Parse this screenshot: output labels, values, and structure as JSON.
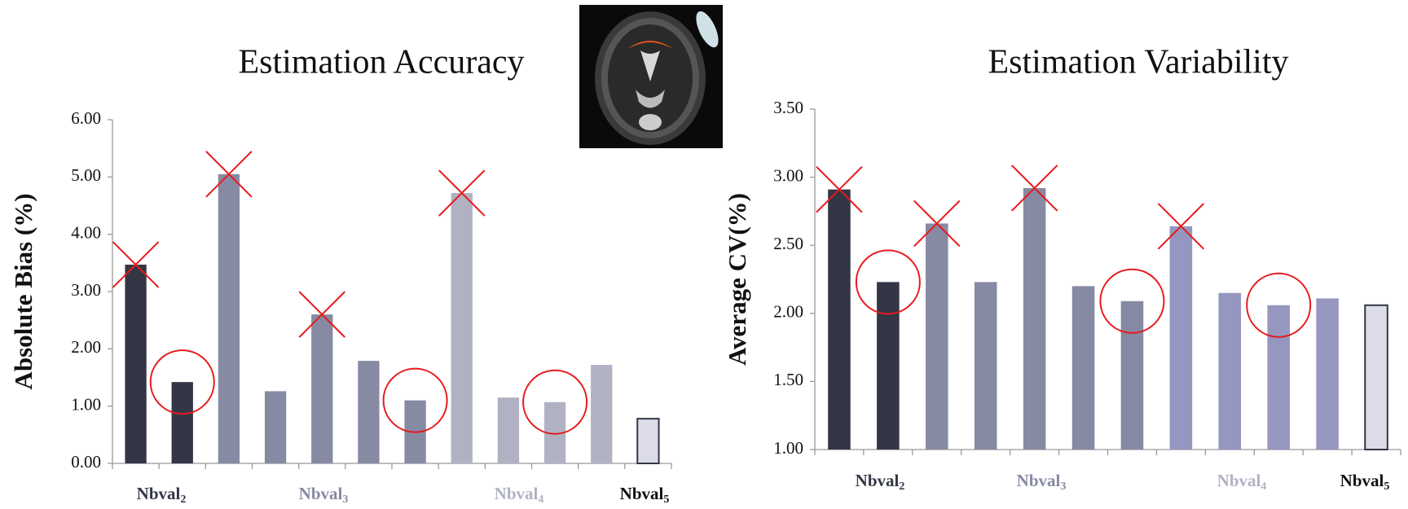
{
  "chart_data": [
    {
      "type": "bar",
      "title": "Estimation Accuracy",
      "y_label": "Absolute Bias (%)",
      "values": [
        3.47,
        1.42,
        5.05,
        1.26,
        2.6,
        1.79,
        1.1,
        4.72,
        1.15,
        1.07,
        1.72,
        0.78
      ],
      "colors": [
        "#333645",
        "#333645",
        "#878aa3",
        "#878aa3",
        "#878aa3",
        "#878aa3",
        "#878aa3",
        "#b0b2c4",
        "#b0b2c4",
        "#b0b2c4",
        "#b0b2c4",
        "#dcdce8"
      ],
      "outlines": [
        null,
        null,
        null,
        null,
        null,
        null,
        null,
        null,
        null,
        null,
        null,
        "#333645"
      ],
      "markers": [
        "cross",
        "circle",
        "cross",
        null,
        "cross",
        null,
        "circle",
        "cross",
        null,
        "circle",
        null,
        null
      ],
      "marker_color": "#e8191b",
      "groups": [
        {
          "name": "Nbval",
          "sub": "2",
          "color": "#333645"
        },
        {
          "name": "Nbval",
          "sub": "3",
          "color": "#878aa3"
        },
        {
          "name": "Nbval",
          "sub": "4",
          "color": "#b0b2c4"
        },
        {
          "name": "Nbval",
          "sub": "5",
          "color": "#111111"
        }
      ],
      "ylim": [
        0,
        6
      ],
      "yticks": [
        {
          "value": 0,
          "label": "0.00"
        },
        {
          "value": 1,
          "label": "1.00"
        },
        {
          "value": 2,
          "label": "2.00"
        },
        {
          "value": 3,
          "label": "3.00"
        },
        {
          "value": 4,
          "label": "4.00"
        },
        {
          "value": 5,
          "label": "5.00"
        },
        {
          "value": 6,
          "label": "6.00"
        }
      ]
    },
    {
      "type": "bar",
      "title": "Estimation Variability",
      "y_label": "Average CV(%)",
      "values": [
        2.91,
        2.23,
        2.66,
        2.23,
        2.92,
        2.2,
        2.09,
        2.64,
        2.15,
        2.06,
        2.11,
        2.06
      ],
      "colors": [
        "#333645",
        "#333645",
        "#878aa3",
        "#878aa3",
        "#878aa3",
        "#878aa3",
        "#878aa3",
        "#9597c0",
        "#9597c0",
        "#9597c0",
        "#9597c0",
        "#dcdce8"
      ],
      "outlines": [
        null,
        null,
        null,
        null,
        null,
        null,
        null,
        null,
        null,
        null,
        null,
        "#333645"
      ],
      "markers": [
        "cross",
        "circle",
        "cross",
        null,
        "cross",
        null,
        "circle",
        "cross",
        null,
        "circle",
        null,
        null
      ],
      "marker_color": "#e8191b",
      "groups": [
        {
          "name": "Nbval",
          "sub": "2",
          "color": "#333645"
        },
        {
          "name": "Nbval",
          "sub": "3",
          "color": "#878aa3"
        },
        {
          "name": "Nbval",
          "sub": "4",
          "color": "#b0b2c4"
        },
        {
          "name": "Nbval",
          "sub": "5",
          "color": "#111111"
        }
      ],
      "ylim": [
        1,
        3.5
      ],
      "yticks": [
        {
          "value": 1,
          "label": "1.00"
        },
        {
          "value": 1.5,
          "label": "1.50"
        },
        {
          "value": 2,
          "label": "2.00"
        },
        {
          "value": 2.5,
          "label": "2.50"
        },
        {
          "value": 3,
          "label": "3.00"
        },
        {
          "value": 3.5,
          "label": "3.50"
        }
      ]
    }
  ]
}
